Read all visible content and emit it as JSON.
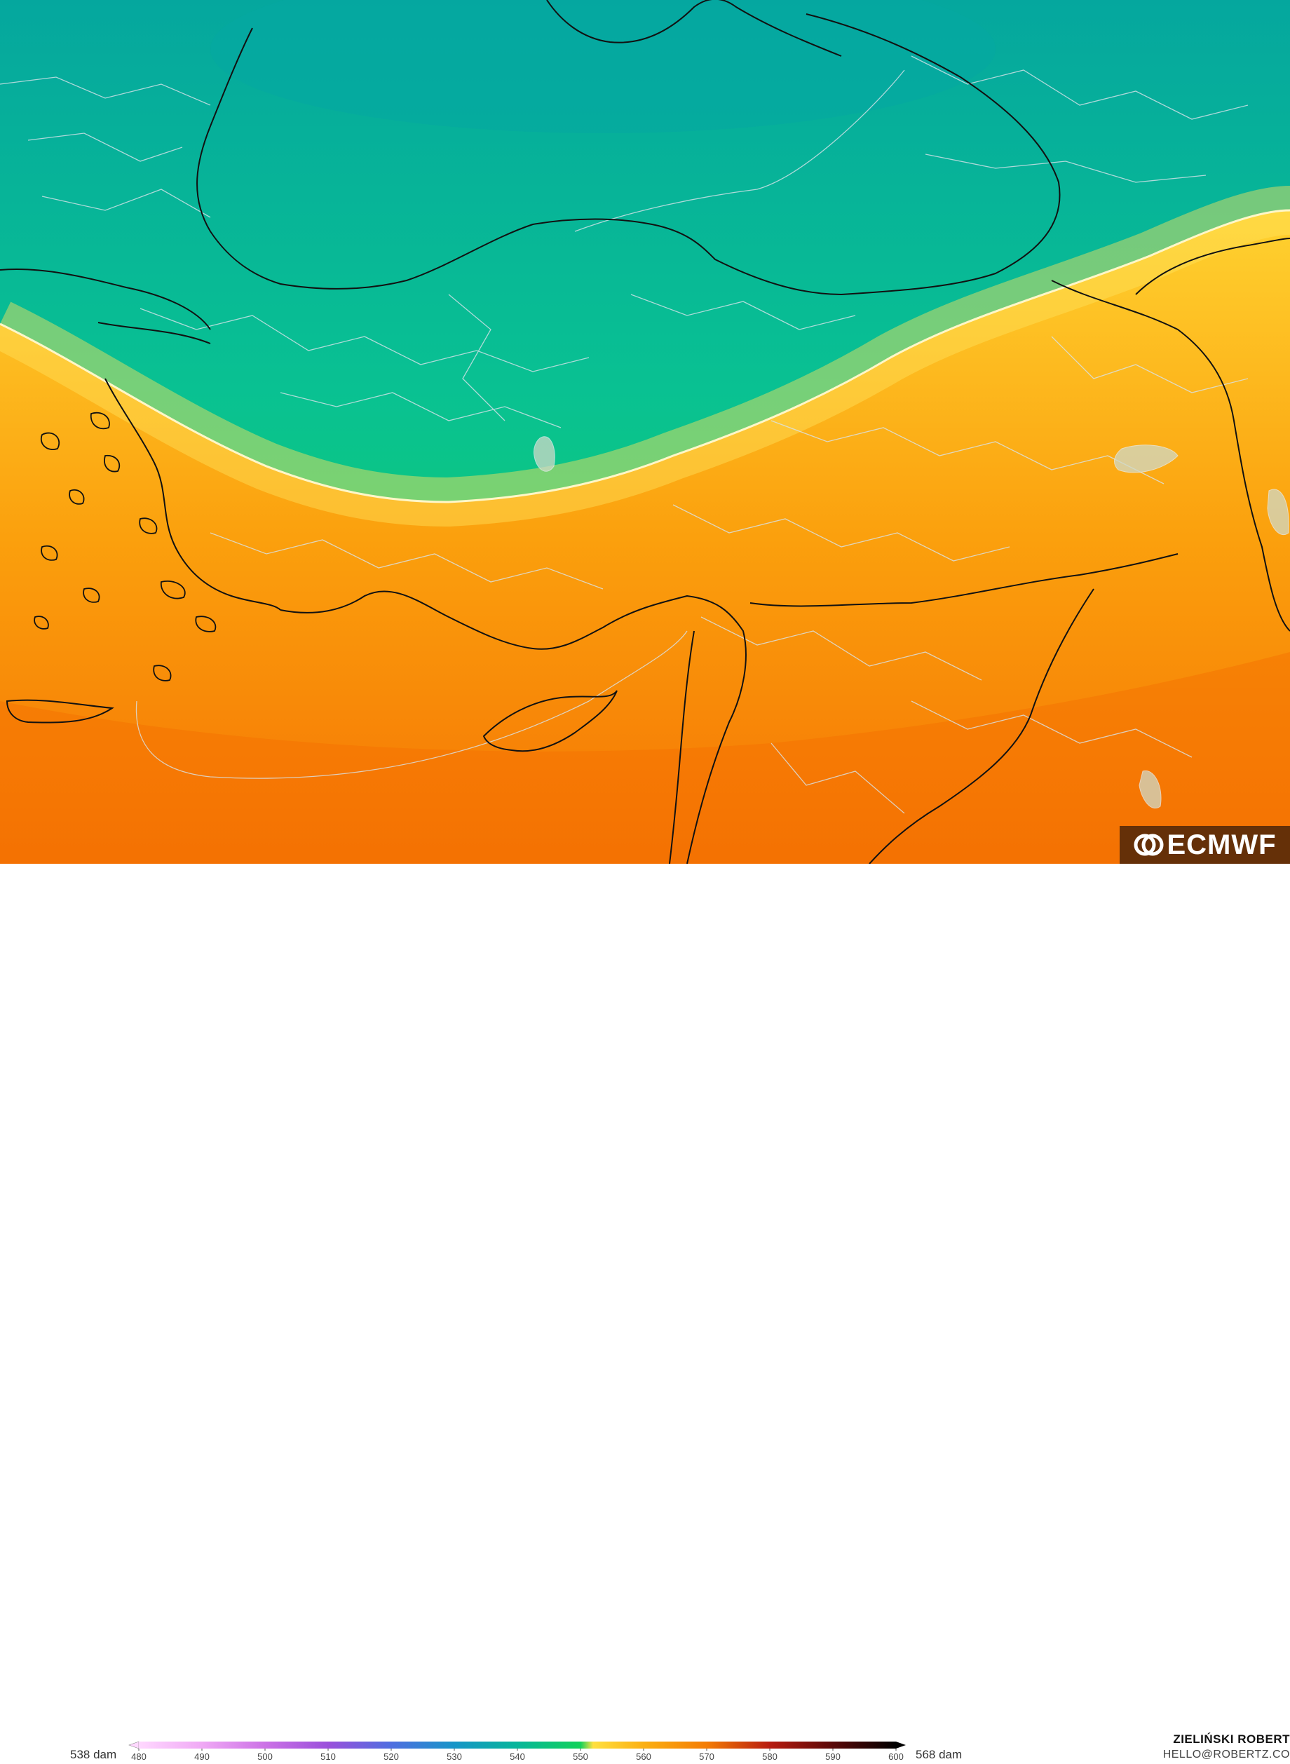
{
  "map": {
    "field_description_none": "",
    "boundary_value_dam": 552,
    "colors": {
      "cold": [
        "#05a4a0",
        "#07b69a",
        "#0bc88f",
        "#10d67a",
        "#15d55e"
      ],
      "boundary": "#ffe040",
      "warm": [
        "#ffc61a",
        "#fdb512",
        "#fba30d",
        "#f89209",
        "#f67f05"
      ],
      "country_border": "#111111",
      "admin_border": "#d8e3ea"
    },
    "logo_text": "ECMWF"
  },
  "colorbar": {
    "min_label": "538 dam",
    "max_label": "568 dam",
    "ticks": [
      "480",
      "490",
      "500",
      "510",
      "520",
      "530",
      "540",
      "550",
      "560",
      "570",
      "580",
      "590",
      "600"
    ],
    "stops": [
      {
        "v": 480,
        "c": "#ffd8ff"
      },
      {
        "v": 490,
        "c": "#f0a9f5"
      },
      {
        "v": 500,
        "c": "#cc72e6"
      },
      {
        "v": 510,
        "c": "#9a50db"
      },
      {
        "v": 520,
        "c": "#4f6ee0"
      },
      {
        "v": 530,
        "c": "#1795c8"
      },
      {
        "v": 540,
        "c": "#07b69a"
      },
      {
        "v": 550,
        "c": "#12d25a"
      },
      {
        "v": 552,
        "c": "#ffe040"
      },
      {
        "v": 560,
        "c": "#fbb012"
      },
      {
        "v": 570,
        "c": "#f47c04"
      },
      {
        "v": 580,
        "c": "#b81c10"
      },
      {
        "v": 590,
        "c": "#5a0808"
      },
      {
        "v": 600,
        "c": "#000000"
      }
    ]
  },
  "credits": {
    "author": "ZIELIŃSKI ROBERT",
    "email": "HELLO@ROBERTZ.CO"
  }
}
